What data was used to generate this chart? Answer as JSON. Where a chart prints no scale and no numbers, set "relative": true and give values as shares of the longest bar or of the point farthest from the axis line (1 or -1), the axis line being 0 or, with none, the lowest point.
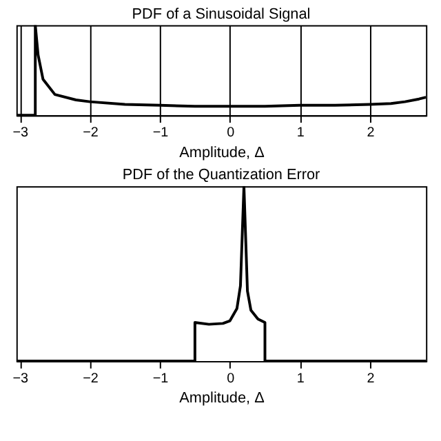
{
  "chart_data": [
    {
      "type": "line",
      "title": "PDF of a Sinusoidal Signal",
      "xlabel": "Amplitude, Δ",
      "relative": true,
      "tick_labels": "x",
      "grid": "x",
      "xlim": [
        -3.05,
        2.8
      ],
      "xticks": [
        -3,
        -2,
        -1,
        0,
        1,
        2
      ],
      "line_style": "solid",
      "series": [
        {
          "color": "#000000",
          "x": [
            -3.05,
            -2.78,
            -2.78,
            -2.74,
            -2.67,
            -2.5,
            -2.2,
            -2,
            -1.5,
            -1,
            -0.5,
            0,
            0.5,
            1,
            1.5,
            2,
            2.3,
            2.5,
            2.7,
            2.8
          ],
          "values": [
            0,
            0,
            1,
            0.67,
            0.4,
            0.23,
            0.17,
            0.15,
            0.12,
            0.11,
            0.1,
            0.1,
            0.1,
            0.11,
            0.11,
            0.12,
            0.13,
            0.15,
            0.18,
            0.2
          ]
        }
      ]
    },
    {
      "type": "line",
      "title": "PDF of the Quantization Error",
      "xlabel": "Amplitude, Δ",
      "relative": true,
      "tick_labels": "x",
      "grid": false,
      "xlim": [
        -3.05,
        2.8
      ],
      "xticks": [
        -3,
        -2,
        -1,
        0,
        1,
        2
      ],
      "line_style": "solid",
      "series": [
        {
          "color": "#000000",
          "x": [
            -3.05,
            -0.5,
            -0.5,
            -0.3,
            -0.1,
            0,
            0.1,
            0.15,
            0.2,
            0.25,
            0.3,
            0.4,
            0.5,
            0.5,
            2.8
          ],
          "values": [
            0,
            0,
            0.22,
            0.21,
            0.215,
            0.23,
            0.3,
            0.43,
            1,
            0.4,
            0.29,
            0.24,
            0.22,
            0,
            0
          ]
        }
      ]
    }
  ]
}
